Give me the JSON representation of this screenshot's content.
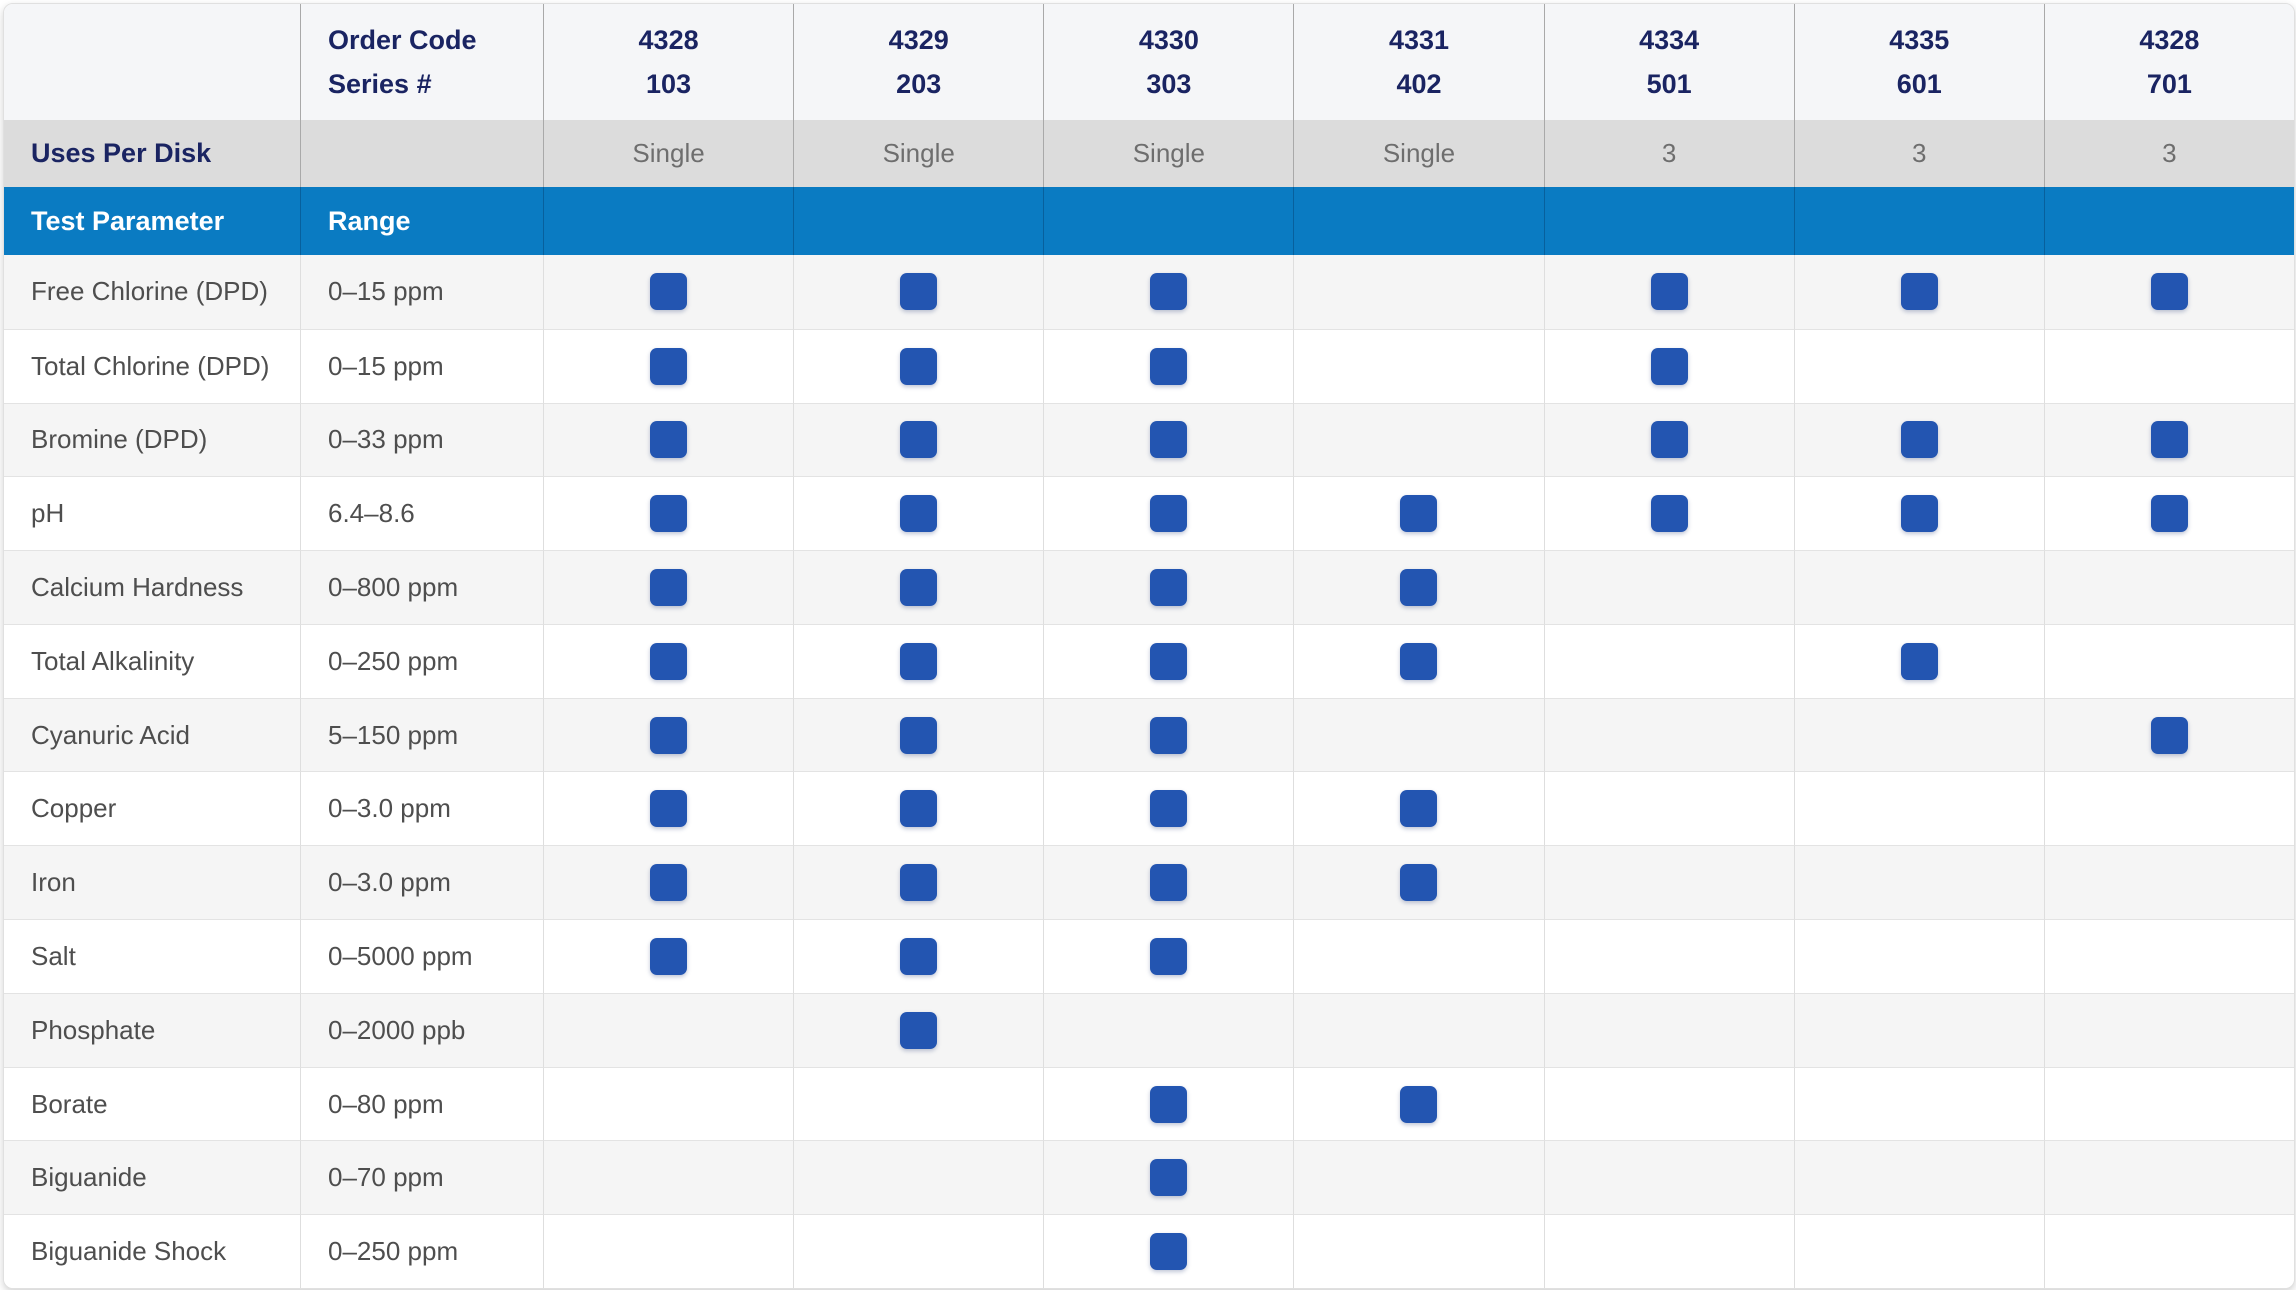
{
  "table": {
    "order_code_label": "Order Code",
    "series_label": "Series #",
    "uses_per_disk_label": "Uses Per Disk",
    "test_parameter_label": "Test Parameter",
    "range_label": "Range",
    "columns": [
      {
        "order_code": "4328",
        "series": "103",
        "uses": "Single"
      },
      {
        "order_code": "4329",
        "series": "203",
        "uses": "Single"
      },
      {
        "order_code": "4330",
        "series": "303",
        "uses": "Single"
      },
      {
        "order_code": "4331",
        "series": "402",
        "uses": "Single"
      },
      {
        "order_code": "4334",
        "series": "501",
        "uses": "3"
      },
      {
        "order_code": "4335",
        "series": "601",
        "uses": "3"
      },
      {
        "order_code": "4328",
        "series": "701",
        "uses": "3"
      }
    ],
    "rows": [
      {
        "parameter": "Free Chlorine (DPD)",
        "range": "0–15 ppm",
        "checks": [
          1,
          1,
          1,
          0,
          1,
          1,
          1
        ]
      },
      {
        "parameter": "Total Chlorine (DPD)",
        "range": "0–15 ppm",
        "checks": [
          1,
          1,
          1,
          0,
          1,
          0,
          0
        ]
      },
      {
        "parameter": "Bromine (DPD)",
        "range": "0–33 ppm",
        "checks": [
          1,
          1,
          1,
          0,
          1,
          1,
          1
        ]
      },
      {
        "parameter": "pH",
        "range": "6.4–8.6",
        "checks": [
          1,
          1,
          1,
          1,
          1,
          1,
          1
        ]
      },
      {
        "parameter": "Calcium Hardness",
        "range": "0–800 ppm",
        "checks": [
          1,
          1,
          1,
          1,
          0,
          0,
          0
        ]
      },
      {
        "parameter": "Total Alkalinity",
        "range": "0–250 ppm",
        "checks": [
          1,
          1,
          1,
          1,
          0,
          1,
          0
        ]
      },
      {
        "parameter": "Cyanuric Acid",
        "range": "5–150 ppm",
        "checks": [
          1,
          1,
          1,
          0,
          0,
          0,
          1
        ]
      },
      {
        "parameter": "Copper",
        "range": "0–3.0 ppm",
        "checks": [
          1,
          1,
          1,
          1,
          0,
          0,
          0
        ]
      },
      {
        "parameter": "Iron",
        "range": "0–3.0 ppm",
        "checks": [
          1,
          1,
          1,
          1,
          0,
          0,
          0
        ]
      },
      {
        "parameter": "Salt",
        "range": "0–5000 ppm",
        "checks": [
          1,
          1,
          1,
          0,
          0,
          0,
          0
        ]
      },
      {
        "parameter": "Phosphate",
        "range": "0–2000 ppb",
        "checks": [
          0,
          1,
          0,
          0,
          0,
          0,
          0
        ]
      },
      {
        "parameter": "Borate",
        "range": "0–80 ppm",
        "checks": [
          0,
          0,
          1,
          1,
          0,
          0,
          0
        ]
      },
      {
        "parameter": "Biguanide",
        "range": "0–70 ppm",
        "checks": [
          0,
          0,
          1,
          0,
          0,
          0,
          0
        ]
      },
      {
        "parameter": "Biguanide Shock",
        "range": "0–250 ppm",
        "checks": [
          0,
          0,
          1,
          0,
          0,
          0,
          0
        ]
      }
    ],
    "colors": {
      "header_blue": "#0a7bc2",
      "check_blue": "#2355b1",
      "navy_text": "#1a2462",
      "uses_row_bg": "#dcdcdc",
      "header_bg": "#f5f6f8",
      "alt_row_bg": "#f5f5f5",
      "body_text": "#4e4e4e",
      "muted_text": "#6e6e6e"
    }
  }
}
